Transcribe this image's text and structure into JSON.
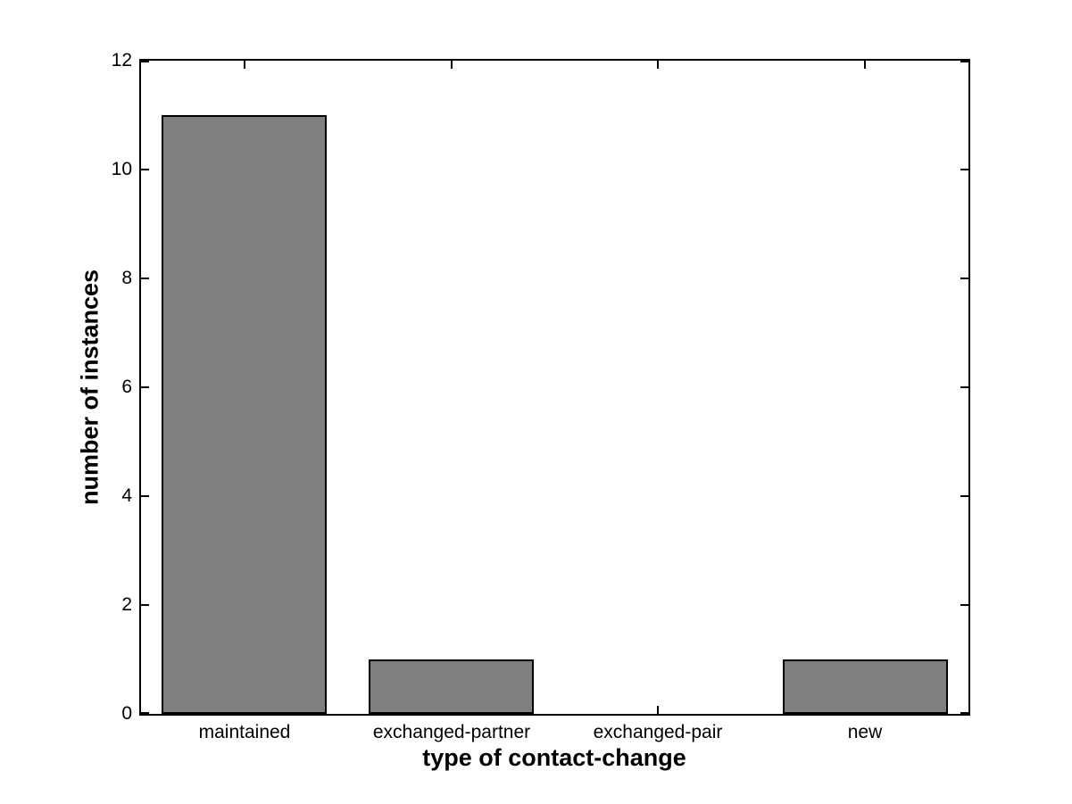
{
  "chart_data": {
    "type": "bar",
    "title": "",
    "xlabel": "type of contact-change",
    "ylabel": "number of instances",
    "categories": [
      "maintained",
      "exchanged-partner",
      "exchanged-pair",
      "new"
    ],
    "values": [
      11,
      1,
      0,
      1
    ],
    "ylim": [
      0,
      12
    ],
    "yticks": [
      0,
      2,
      4,
      6,
      8,
      10,
      12
    ],
    "bar_color": "#7f7f7f",
    "bar_edge_color": "#000000",
    "axis_color": "#000000",
    "background_color": "#ffffff",
    "bar_width_fraction": 0.8,
    "grid": false,
    "legend": "none",
    "tick_direction": "in",
    "box": true
  }
}
